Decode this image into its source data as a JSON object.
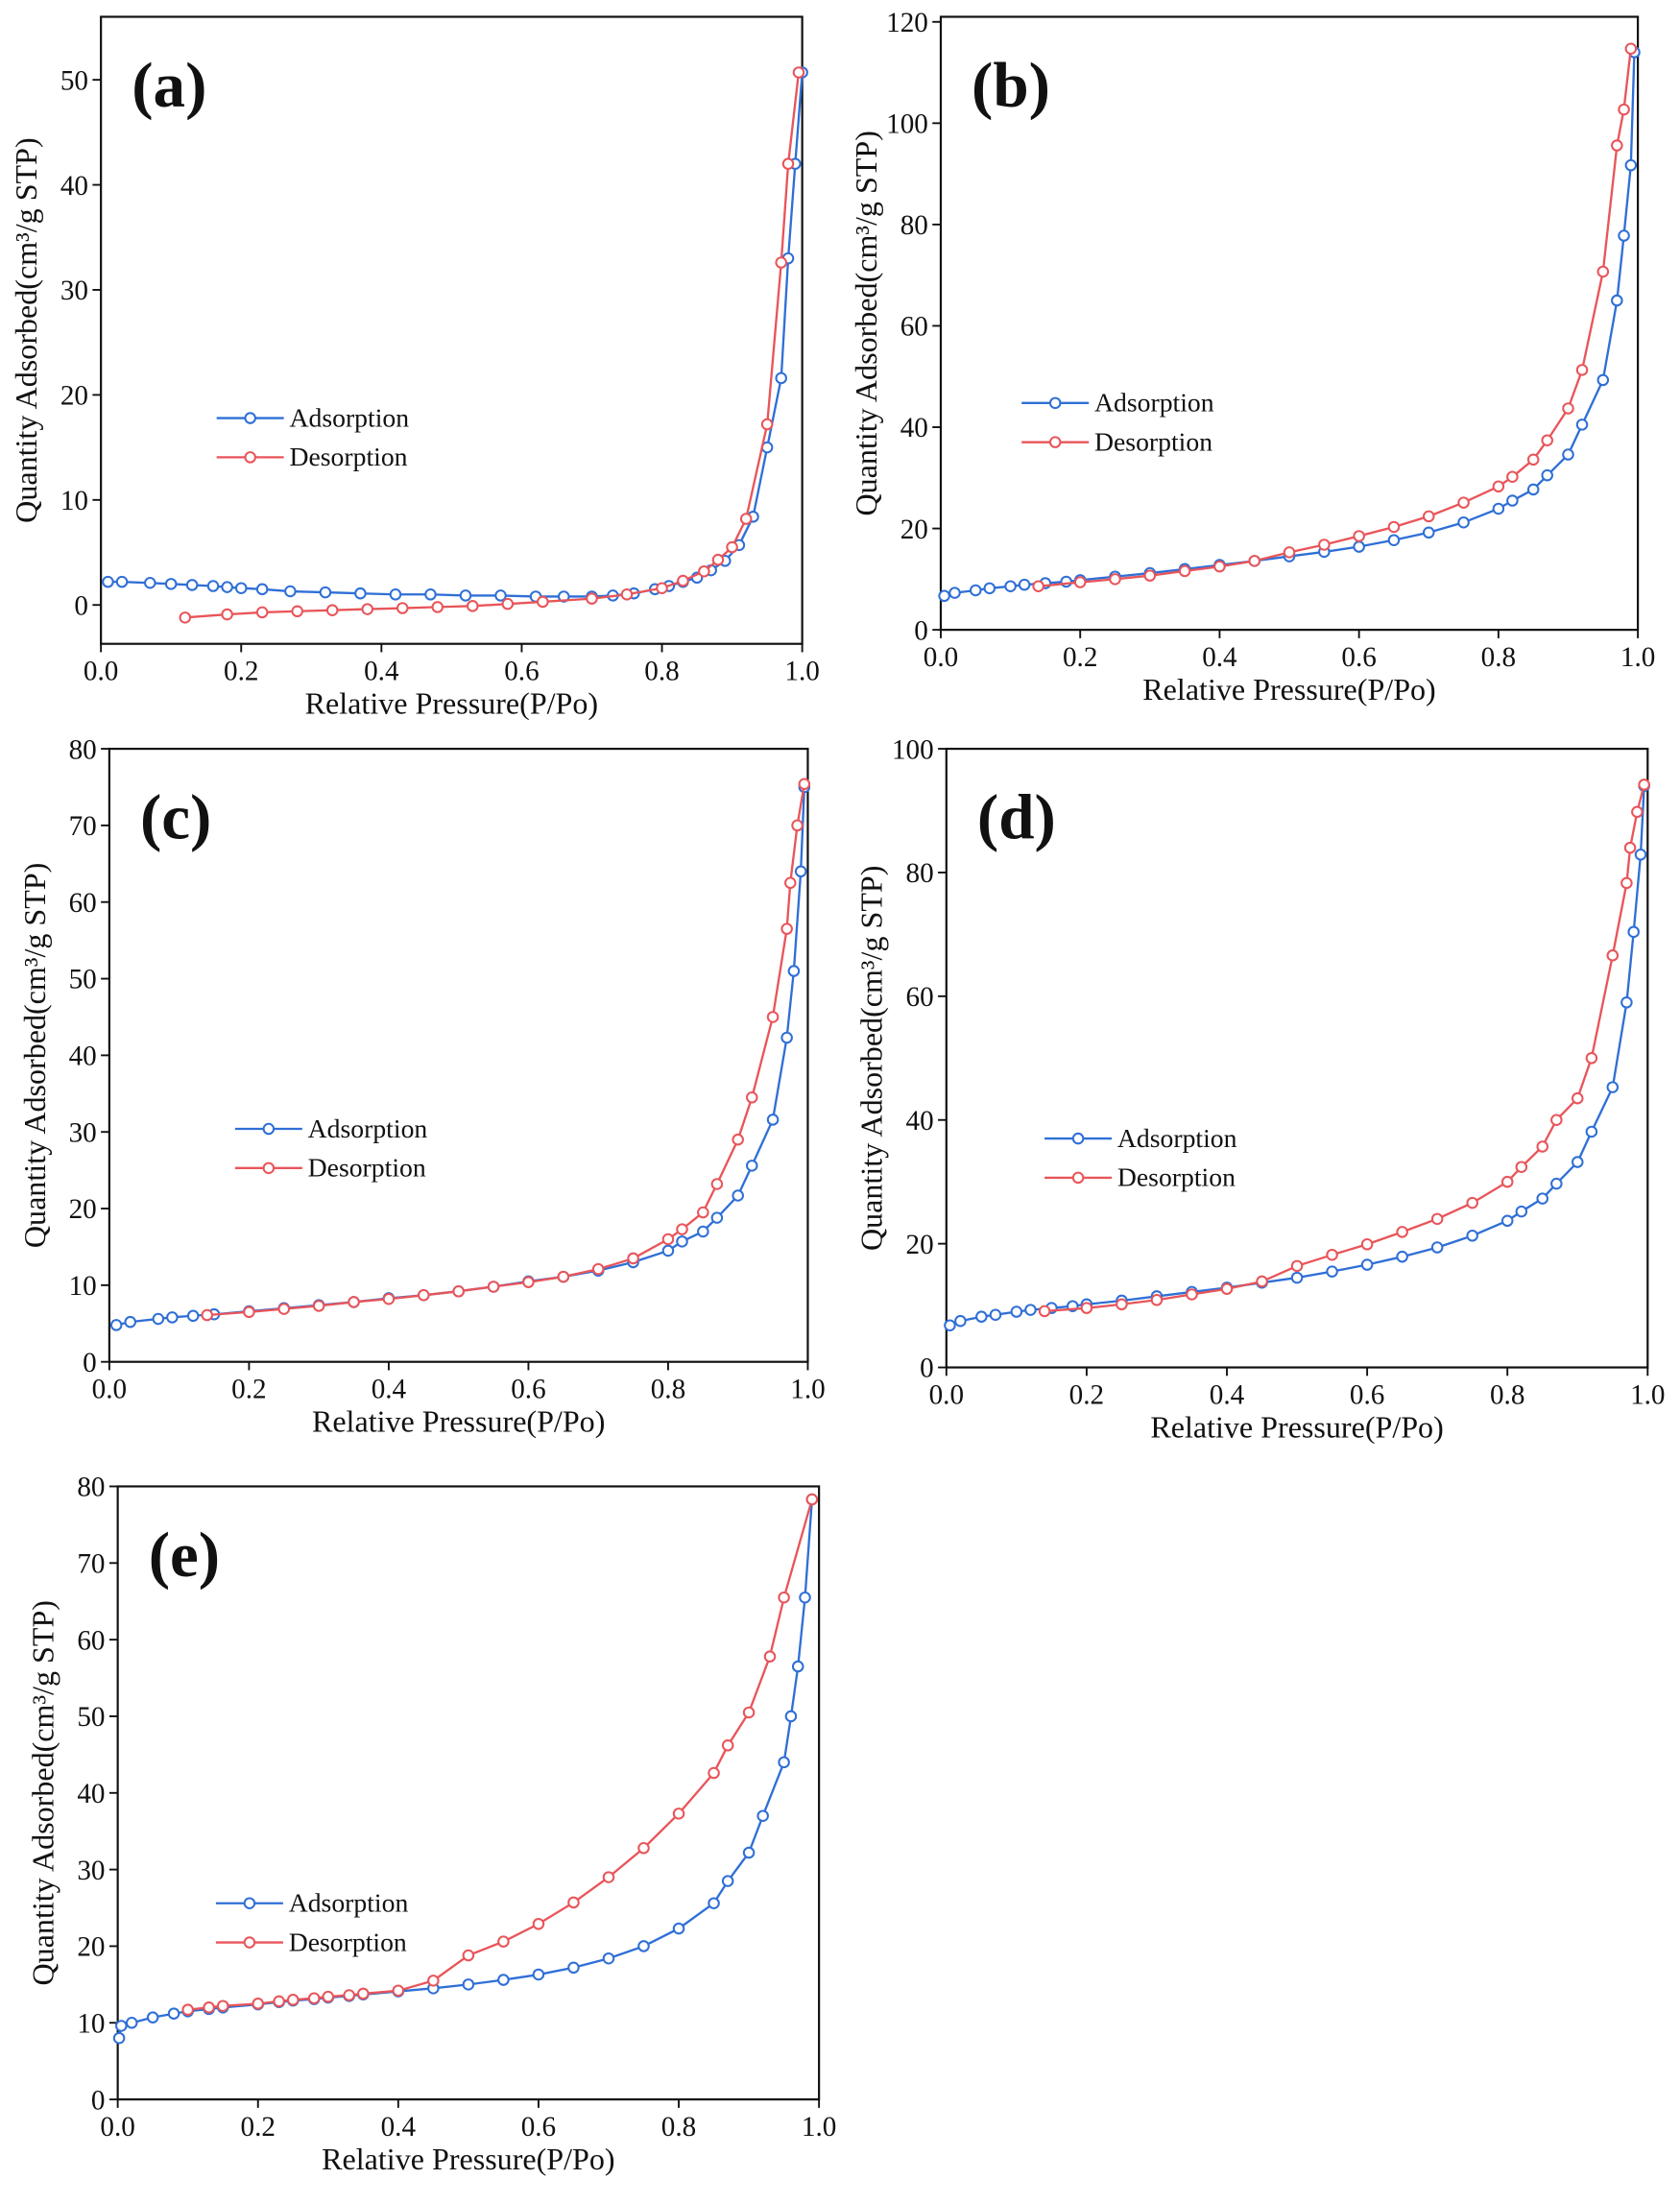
{
  "chart_data": [
    {
      "type": "line",
      "label": "(a)",
      "xlabel": "Relative Pressure(P/Po)",
      "ylabel": "Quantity Adsorbed(cm³/g STP)",
      "xlim": [
        0,
        1
      ],
      "ylim": [
        -3.7,
        56
      ],
      "xticks": [
        {
          "value": 0,
          "label": "0.0"
        },
        0.2,
        0.4,
        0.6,
        0.8,
        {
          "value": 1,
          "label": "1.0"
        }
      ],
      "yticks": [
        0,
        10,
        20,
        30,
        40,
        50
      ],
      "legend": "left",
      "series": [
        {
          "name": "Adsorption",
          "color": "#2f6fd6",
          "x": [
            0.01,
            0.03,
            0.07,
            0.1,
            0.13,
            0.16,
            0.18,
            0.2,
            0.23,
            0.27,
            0.32,
            0.37,
            0.42,
            0.47,
            0.52,
            0.57,
            0.62,
            0.66,
            0.7,
            0.73,
            0.76,
            0.79,
            0.81,
            0.83,
            0.85,
            0.87,
            0.89,
            0.91,
            0.93,
            0.95,
            0.97,
            0.98,
            0.99,
            1.0
          ],
          "values": [
            2.2,
            2.2,
            2.1,
            2.0,
            1.9,
            1.8,
            1.7,
            1.6,
            1.5,
            1.3,
            1.2,
            1.1,
            1.0,
            1.0,
            0.9,
            0.9,
            0.8,
            0.8,
            0.8,
            0.9,
            1.1,
            1.5,
            1.8,
            2.2,
            2.6,
            3.3,
            4.2,
            5.7,
            8.4,
            15,
            21.6,
            33,
            42,
            50.7
          ]
        },
        {
          "name": "Desorption",
          "color": "#e8555a",
          "x": [
            0.12,
            0.18,
            0.23,
            0.28,
            0.33,
            0.38,
            0.43,
            0.48,
            0.53,
            0.58,
            0.63,
            0.7,
            0.75,
            0.8,
            0.83,
            0.86,
            0.88,
            0.9,
            0.92,
            0.95,
            0.97,
            0.98,
            0.995
          ],
          "values": [
            -1.2,
            -0.9,
            -0.7,
            -0.6,
            -0.5,
            -0.4,
            -0.3,
            -0.2,
            -0.1,
            0.1,
            0.3,
            0.6,
            1.0,
            1.6,
            2.3,
            3.2,
            4.3,
            5.5,
            8.2,
            17.2,
            32.6,
            42,
            50.7
          ]
        }
      ]
    },
    {
      "type": "line",
      "label": "(b)",
      "xlabel": "Relative Pressure(P/Po)",
      "ylabel": "Quantity Adsorbed(cm³/g STP)",
      "xlim": [
        0,
        1
      ],
      "ylim": [
        0,
        121
      ],
      "xticks": [
        {
          "value": 0,
          "label": "0.0"
        },
        0.2,
        0.4,
        0.6,
        0.8,
        {
          "value": 1,
          "label": "1.0"
        }
      ],
      "yticks": [
        0,
        20,
        40,
        60,
        80,
        100,
        120
      ],
      "legend": "left",
      "series": [
        {
          "name": "Adsorption",
          "color": "#2f6fd6",
          "x": [
            0.005,
            0.02,
            0.05,
            0.07,
            0.1,
            0.12,
            0.15,
            0.18,
            0.2,
            0.25,
            0.3,
            0.35,
            0.4,
            0.45,
            0.5,
            0.55,
            0.6,
            0.65,
            0.7,
            0.75,
            0.8,
            0.82,
            0.85,
            0.87,
            0.9,
            0.92,
            0.95,
            0.97,
            0.98,
            0.99,
            0.995
          ],
          "values": [
            6.7,
            7.3,
            7.8,
            8.2,
            8.6,
            8.9,
            9.2,
            9.5,
            9.8,
            10.5,
            11.2,
            12.0,
            12.8,
            13.6,
            14.5,
            15.4,
            16.4,
            17.7,
            19.2,
            21.2,
            23.9,
            25.5,
            27.7,
            30.5,
            34.6,
            40.5,
            49.3,
            65,
            77.8,
            91.7,
            114
          ]
        },
        {
          "name": "Desorption",
          "color": "#e8555a",
          "x": [
            0.14,
            0.2,
            0.25,
            0.3,
            0.35,
            0.4,
            0.45,
            0.5,
            0.55,
            0.6,
            0.65,
            0.7,
            0.75,
            0.8,
            0.82,
            0.85,
            0.87,
            0.9,
            0.92,
            0.95,
            0.97,
            0.98,
            0.99
          ],
          "values": [
            8.6,
            9.4,
            10,
            10.7,
            11.6,
            12.5,
            13.6,
            15.3,
            16.8,
            18.5,
            20.3,
            22.4,
            25.1,
            28.3,
            30.2,
            33.6,
            37.4,
            43.7,
            51.3,
            70.7,
            95.6,
            102.7,
            114.7
          ]
        }
      ]
    },
    {
      "type": "line",
      "label": "(c)",
      "xlabel": "Relative Pressure(P/Po)",
      "ylabel": "Quantity Adsorbed(cm³/g STP)",
      "xlim": [
        0,
        1
      ],
      "ylim": [
        0,
        80
      ],
      "xticks": [
        {
          "value": 0,
          "label": "0.0"
        },
        0.2,
        0.4,
        0.6,
        0.8,
        {
          "value": 1,
          "label": "1.0"
        }
      ],
      "yticks": [
        0,
        10,
        20,
        30,
        40,
        50,
        60,
        70,
        80
      ],
      "legend": "left",
      "series": [
        {
          "name": "Adsorption",
          "color": "#2f6fd6",
          "x": [
            0.01,
            0.03,
            0.07,
            0.09,
            0.12,
            0.15,
            0.2,
            0.25,
            0.3,
            0.35,
            0.4,
            0.45,
            0.5,
            0.55,
            0.6,
            0.65,
            0.7,
            0.75,
            0.8,
            0.82,
            0.85,
            0.87,
            0.9,
            0.92,
            0.95,
            0.97,
            0.98,
            0.99,
            0.995
          ],
          "values": [
            4.8,
            5.2,
            5.6,
            5.8,
            6.0,
            6.2,
            6.6,
            7.0,
            7.4,
            7.8,
            8.3,
            8.7,
            9.2,
            9.8,
            10.5,
            11.1,
            11.9,
            13.0,
            14.5,
            15.7,
            17.0,
            18.8,
            21.7,
            25.6,
            31.6,
            42.3,
            51,
            64,
            75
          ]
        },
        {
          "name": "Desorption",
          "color": "#e8555a",
          "x": [
            0.14,
            0.2,
            0.25,
            0.3,
            0.35,
            0.4,
            0.45,
            0.5,
            0.55,
            0.6,
            0.65,
            0.7,
            0.75,
            0.8,
            0.82,
            0.85,
            0.87,
            0.9,
            0.92,
            0.95,
            0.97,
            0.975,
            0.985,
            0.995
          ],
          "values": [
            6.1,
            6.5,
            6.9,
            7.3,
            7.8,
            8.2,
            8.7,
            9.2,
            9.8,
            10.4,
            11.1,
            12.1,
            13.5,
            16,
            17.3,
            19.5,
            23.2,
            29,
            34.5,
            45,
            56.5,
            62.5,
            70,
            75.4
          ]
        }
      ]
    },
    {
      "type": "line",
      "label": "(d)",
      "xlabel": "Relative Pressure(P/Po)",
      "ylabel": "Quantity Adsorbed(cm³/g STP)",
      "xlim": [
        0,
        1
      ],
      "ylim": [
        0,
        100
      ],
      "xticks": [
        {
          "value": 0,
          "label": "0.0"
        },
        0.2,
        0.4,
        0.6,
        0.8,
        {
          "value": 1,
          "label": "1.0"
        }
      ],
      "yticks": [
        0,
        20,
        40,
        60,
        80,
        100
      ],
      "legend": "left",
      "series": [
        {
          "name": "Adsorption",
          "color": "#2f6fd6",
          "x": [
            0.005,
            0.02,
            0.05,
            0.07,
            0.1,
            0.12,
            0.15,
            0.18,
            0.2,
            0.25,
            0.3,
            0.35,
            0.4,
            0.45,
            0.5,
            0.55,
            0.6,
            0.65,
            0.7,
            0.75,
            0.8,
            0.82,
            0.85,
            0.87,
            0.9,
            0.92,
            0.95,
            0.97,
            0.98,
            0.99,
            0.995
          ],
          "values": [
            6.8,
            7.5,
            8.2,
            8.5,
            9.0,
            9.3,
            9.6,
            9.9,
            10.2,
            10.8,
            11.5,
            12.2,
            12.9,
            13.7,
            14.5,
            15.5,
            16.6,
            17.9,
            19.4,
            21.3,
            23.7,
            25.2,
            27.3,
            29.7,
            33.2,
            38.1,
            45.3,
            59,
            70.4,
            82.9,
            94
          ]
        },
        {
          "name": "Desorption",
          "color": "#e8555a",
          "x": [
            0.14,
            0.2,
            0.25,
            0.3,
            0.35,
            0.4,
            0.45,
            0.5,
            0.55,
            0.6,
            0.65,
            0.7,
            0.75,
            0.8,
            0.82,
            0.85,
            0.87,
            0.9,
            0.92,
            0.95,
            0.97,
            0.975,
            0.985,
            0.995
          ],
          "values": [
            9.1,
            9.6,
            10.2,
            10.9,
            11.8,
            12.7,
            13.9,
            16.4,
            18.2,
            19.9,
            21.9,
            24,
            26.6,
            30,
            32.4,
            35.7,
            40,
            43.5,
            50,
            66.6,
            78.3,
            84,
            89.8,
            94.2
          ]
        }
      ]
    },
    {
      "type": "line",
      "label": "(e)",
      "xlabel": "Relative Pressure(P/Po)",
      "ylabel": "Quantity Adsorbed(cm³/g STP)",
      "xlim": [
        0,
        1
      ],
      "ylim": [
        0,
        80
      ],
      "xticks": [
        {
          "value": 0,
          "label": "0.0"
        },
        0.2,
        0.4,
        0.6,
        0.8,
        {
          "value": 1,
          "label": "1.0"
        }
      ],
      "yticks": [
        0,
        10,
        20,
        30,
        40,
        50,
        60,
        70,
        80
      ],
      "legend": "left",
      "series": [
        {
          "name": "Adsorption",
          "color": "#2f6fd6",
          "x": [
            0.002,
            0.005,
            0.02,
            0.05,
            0.08,
            0.1,
            0.13,
            0.15,
            0.2,
            0.23,
            0.25,
            0.28,
            0.3,
            0.33,
            0.35,
            0.4,
            0.45,
            0.5,
            0.55,
            0.6,
            0.65,
            0.7,
            0.75,
            0.8,
            0.85,
            0.87,
            0.9,
            0.92,
            0.95,
            0.96,
            0.97,
            0.98,
            0.99
          ],
          "values": [
            8,
            9.6,
            10,
            10.7,
            11.2,
            11.5,
            11.8,
            12,
            12.4,
            12.7,
            12.9,
            13.1,
            13.3,
            13.5,
            13.7,
            14.1,
            14.5,
            15,
            15.6,
            16.3,
            17.2,
            18.4,
            20,
            22.3,
            25.6,
            28.5,
            32.2,
            37,
            44,
            50,
            56.5,
            65.5,
            78.3
          ]
        },
        {
          "name": "Desorption",
          "color": "#e8555a",
          "x": [
            0.1,
            0.13,
            0.15,
            0.2,
            0.23,
            0.25,
            0.28,
            0.3,
            0.33,
            0.35,
            0.4,
            0.45,
            0.5,
            0.55,
            0.6,
            0.65,
            0.7,
            0.75,
            0.8,
            0.85,
            0.87,
            0.9,
            0.93,
            0.95,
            0.99
          ],
          "values": [
            11.7,
            12,
            12.2,
            12.5,
            12.8,
            13,
            13.2,
            13.4,
            13.6,
            13.8,
            14.2,
            15.5,
            18.8,
            20.6,
            22.9,
            25.7,
            29,
            32.8,
            37.3,
            42.6,
            46.2,
            50.5,
            57.8,
            65.5,
            78.3
          ]
        }
      ]
    }
  ]
}
